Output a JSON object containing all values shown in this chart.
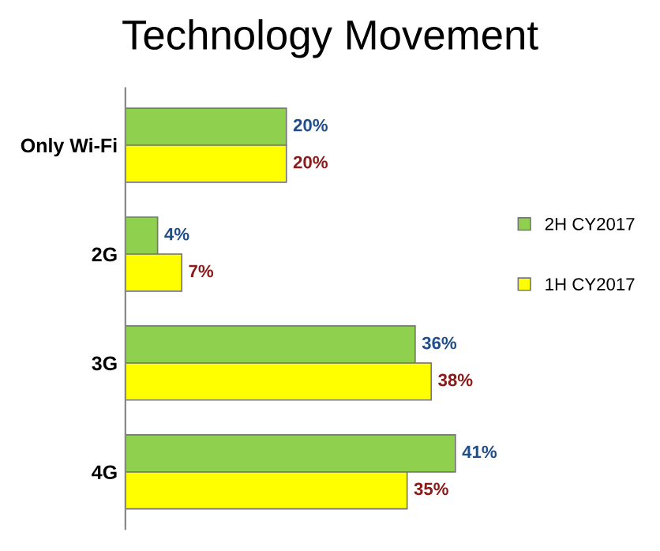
{
  "chart_data": {
    "type": "bar",
    "orientation": "horizontal",
    "title": "Technology Movement",
    "categories": [
      "Only Wi-Fi",
      "2G",
      "3G",
      "4G"
    ],
    "series": [
      {
        "name": "2H CY2017",
        "color": "#8fd14f",
        "values": [
          20,
          4,
          36,
          41
        ],
        "value_labels": [
          "20%",
          "4%",
          "36%",
          "41%"
        ]
      },
      {
        "name": "1H CY2017",
        "color": "#ffff00",
        "values": [
          20,
          7,
          38,
          35
        ],
        "value_labels": [
          "20%",
          "7%",
          "38%",
          "35%"
        ]
      }
    ],
    "tick_labels": "y",
    "legend": "right",
    "grid": false
  }
}
